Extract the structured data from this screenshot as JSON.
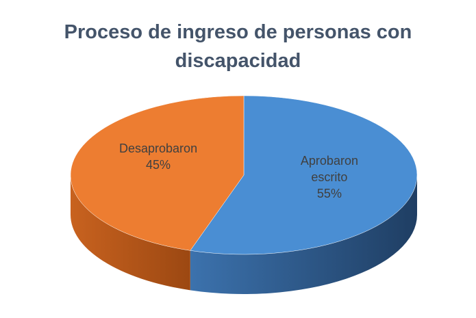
{
  "chart_data": {
    "type": "pie",
    "title": "Proceso de ingreso de personas con discapacidad",
    "categories": [
      "Aprobaron escrito",
      "Desaprobaron"
    ],
    "values": [
      55,
      45
    ],
    "value_labels": [
      "55%",
      "45%"
    ],
    "colors": [
      "#4a8ed3",
      "#ed7d31"
    ]
  }
}
